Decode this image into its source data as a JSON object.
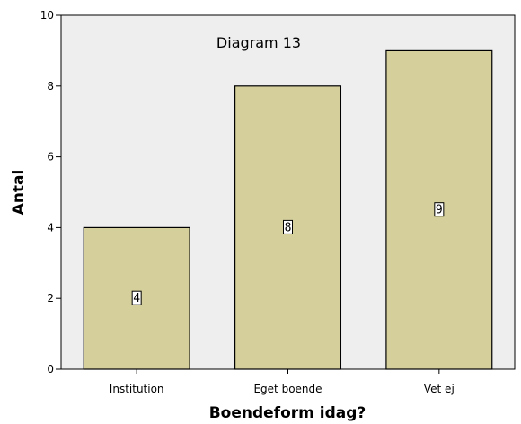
{
  "chart_data": {
    "type": "bar",
    "title": "Diagram 13",
    "xlabel": "Boendeform idag?",
    "ylabel": "Antal",
    "categories": [
      "Institution",
      "Eget boende",
      "Vet ej"
    ],
    "values": [
      4,
      8,
      9
    ],
    "data_labels": [
      "4",
      "8",
      "9"
    ],
    "ylim": [
      0,
      10
    ],
    "yticks": [
      0,
      2,
      4,
      6,
      8,
      10
    ],
    "ytick_labels": [
      "0",
      "2",
      "4",
      "6",
      "8",
      "10"
    ],
    "grid": false,
    "legend": "none"
  },
  "colors": {
    "plot_background": "#eeeeee",
    "bar_fill": "#d4cf9b",
    "bar_stroke": "#000000"
  }
}
